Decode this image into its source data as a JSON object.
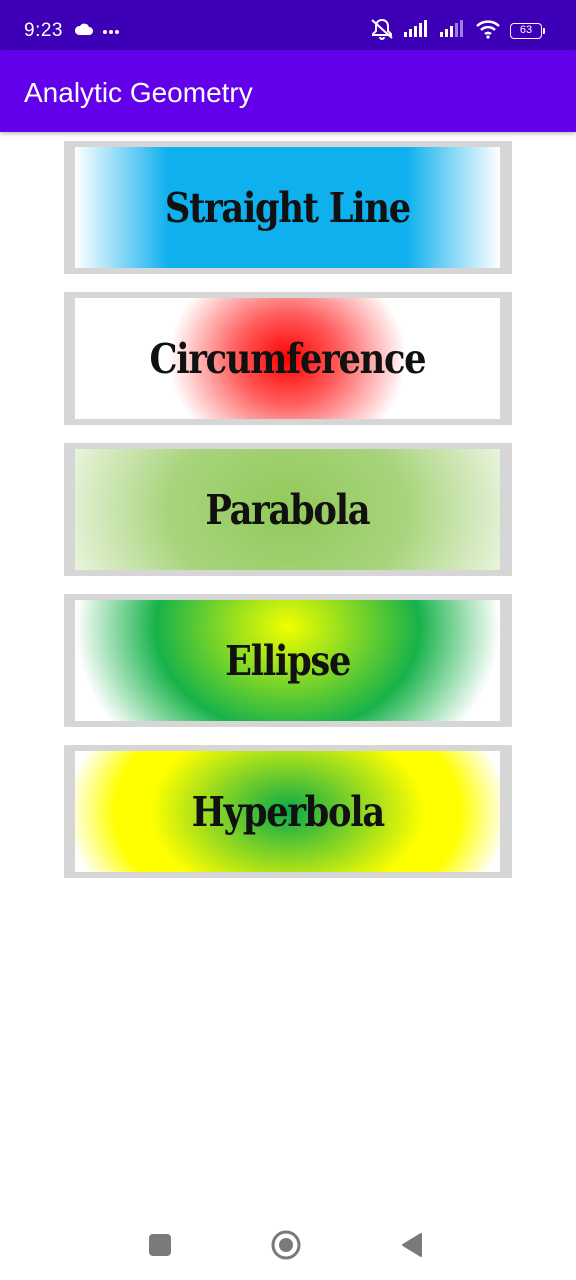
{
  "status_bar": {
    "time": "9:23",
    "battery": "63",
    "icons": [
      "cloud-icon",
      "more-icon",
      "mute-icon",
      "signal-icon",
      "signal-icon",
      "wifi-icon",
      "battery-icon"
    ]
  },
  "app_bar": {
    "title": "Analytic Geometry"
  },
  "menu": {
    "items": [
      {
        "label": "Straight Line"
      },
      {
        "label": "Circumference"
      },
      {
        "label": "Parabola"
      },
      {
        "label": "Ellipse"
      },
      {
        "label": "Hyperbola"
      }
    ]
  },
  "nav_bar": {
    "icons": [
      "recent-apps-icon",
      "home-icon",
      "back-icon"
    ]
  },
  "colors": {
    "status_bar": "#3d00b6",
    "app_bar": "#6200ea",
    "button_frame": "#d6d6d6",
    "straight_line": "#0eb0ee",
    "circumference": "#ff0000",
    "parabola": "#92c95a",
    "ellipse": "#17b24a",
    "hyperbola": "#ffff00"
  }
}
